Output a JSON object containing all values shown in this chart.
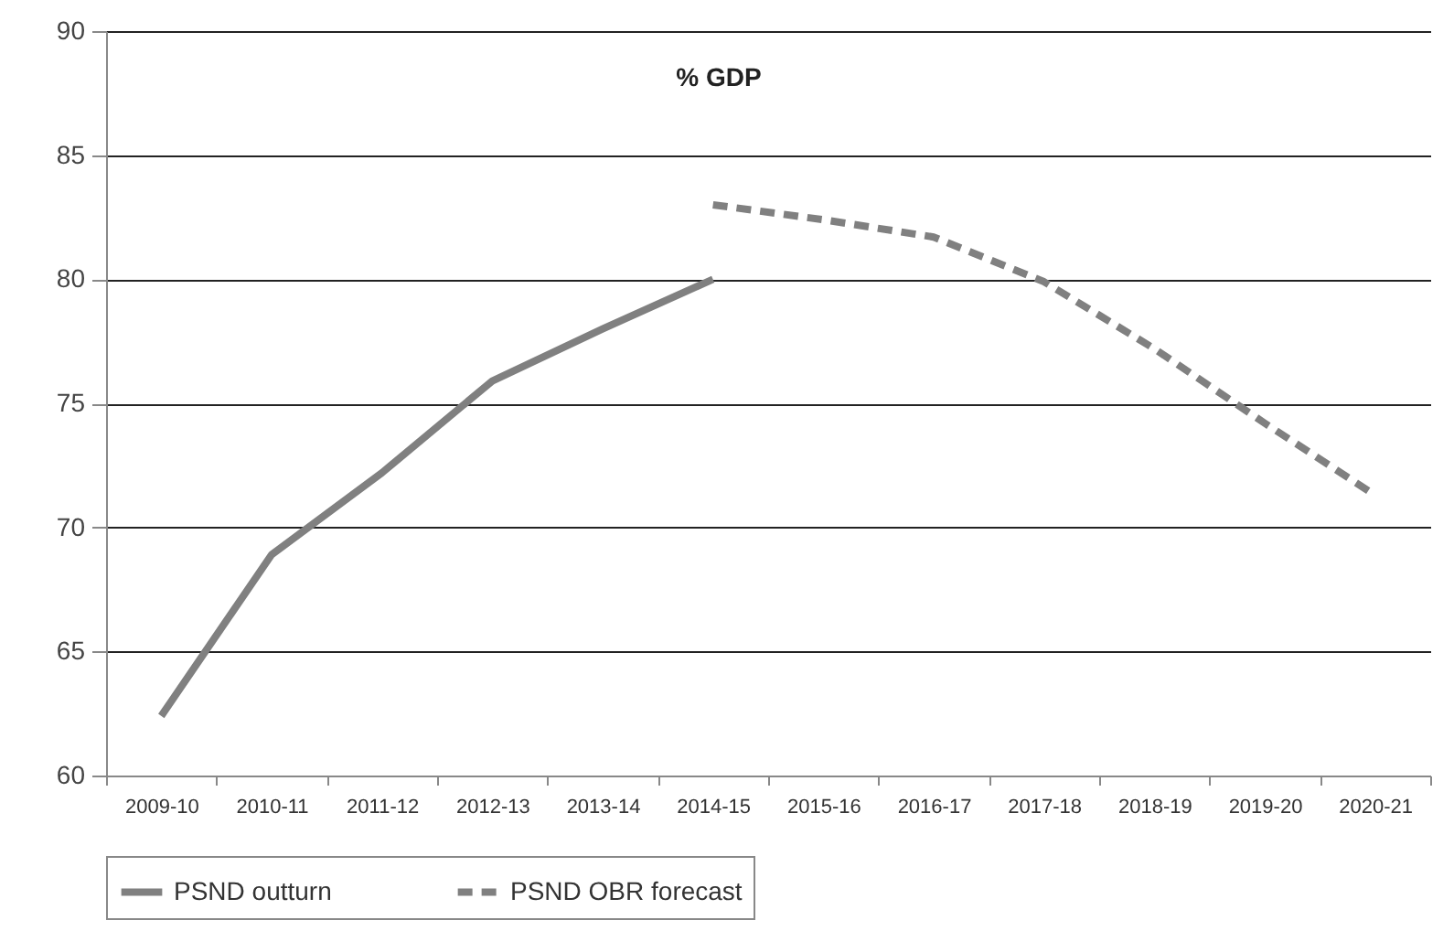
{
  "chart_data": {
    "type": "line",
    "annotations": [
      "% GDP"
    ],
    "categories": [
      "2009-10",
      "2010-11",
      "2011-12",
      "2012-13",
      "2013-14",
      "2014-15",
      "2015-16",
      "2016-17",
      "2017-18",
      "2018-19",
      "2019-20",
      "2020-21"
    ],
    "series": [
      {
        "name": "PSND outturn",
        "color": "#808080",
        "line_style": "solid",
        "values": [
          62.4,
          68.9,
          72.2,
          75.9,
          78.0,
          80.0,
          null,
          null,
          null,
          null,
          null,
          null
        ]
      },
      {
        "name": "PSND OBR forecast",
        "color": "#808080",
        "line_style": "dashed",
        "values": [
          null,
          null,
          null,
          null,
          null,
          83.0,
          82.4,
          81.7,
          79.9,
          77.2,
          74.2,
          71.3
        ]
      }
    ],
    "ylim": [
      60,
      90
    ],
    "yticks": [
      60,
      65,
      70,
      75,
      80,
      85,
      90
    ],
    "grid": "y",
    "legend": "bottom",
    "marker": "none"
  }
}
